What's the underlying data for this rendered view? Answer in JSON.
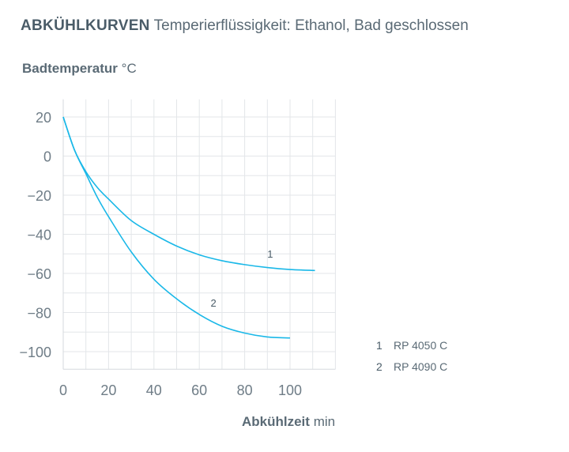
{
  "chart_data": {
    "type": "line",
    "title": "ABKÜHLKURVEN",
    "subtitle": "Temperierflüssigkeit: Ethanol, Bad geschlossen",
    "ylabel": "Badtemperatur",
    "yunit": "°C",
    "xlabel": "Abkühlzeit",
    "xunit": "min",
    "xlim": [
      0,
      120
    ],
    "ylim": [
      -109,
      29
    ],
    "xticks": [
      0,
      20,
      40,
      60,
      80,
      100
    ],
    "yticks": [
      20,
      0,
      -20,
      -40,
      -60,
      -80,
      -100
    ],
    "ytick_labels": [
      "20",
      "0",
      "−20",
      "−40",
      "−60",
      "−80",
      "−100"
    ],
    "grid": true,
    "color": "#1ab8e8",
    "series": [
      {
        "id": "1",
        "name": "RP 4050 C",
        "x": [
          0,
          5,
          10,
          15,
          20,
          30,
          40,
          50,
          60,
          70,
          80,
          90,
          100,
          111
        ],
        "y": [
          20,
          3,
          -8,
          -16,
          -22,
          -33,
          -40,
          -46,
          -50.5,
          -53.5,
          -55.5,
          -57,
          -58,
          -58.5
        ],
        "label_at": [
          90,
          -52
        ]
      },
      {
        "id": "2",
        "name": "RP 4090 C",
        "x": [
          0,
          5,
          10,
          15,
          20,
          30,
          40,
          50,
          60,
          70,
          80,
          90,
          100
        ],
        "y": [
          20,
          3,
          -9,
          -21,
          -31,
          -49,
          -63,
          -73,
          -81,
          -87,
          -90.5,
          -92.5,
          -93
        ],
        "label_at": [
          65,
          -77
        ]
      }
    ],
    "legend_position": "right"
  }
}
